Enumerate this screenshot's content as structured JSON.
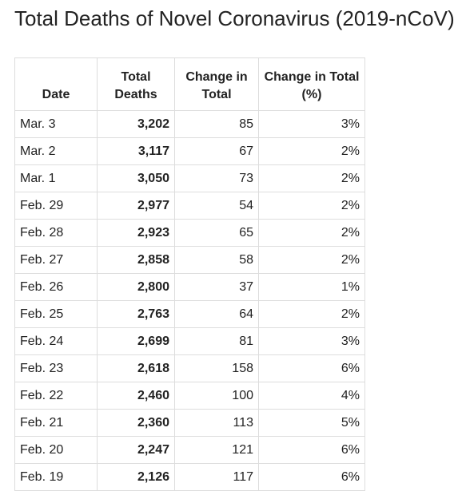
{
  "header": {
    "title": "Total Deaths of Novel Coronavirus (2019-nCoV)"
  },
  "table": {
    "columns": [
      "Date",
      "Total Deaths",
      "Change in Total",
      "Change in Total (%)"
    ],
    "rows": [
      [
        "Mar. 3",
        "3,202",
        "85",
        "3%"
      ],
      [
        "Mar. 2",
        "3,117",
        "67",
        "2%"
      ],
      [
        "Mar. 1",
        "3,050",
        "73",
        "2%"
      ],
      [
        "Feb. 29",
        "2,977",
        "54",
        "2%"
      ],
      [
        "Feb. 28",
        "2,923",
        "65",
        "2%"
      ],
      [
        "Feb. 27",
        "2,858",
        "58",
        "2%"
      ],
      [
        "Feb. 26",
        "2,800",
        "37",
        "1%"
      ],
      [
        "Feb. 25",
        "2,763",
        "64",
        "2%"
      ],
      [
        "Feb. 24",
        "2,699",
        "81",
        "3%"
      ],
      [
        "Feb. 23",
        "2,618",
        "158",
        "6%"
      ],
      [
        "Feb. 22",
        "2,460",
        "100",
        "4%"
      ],
      [
        "Feb. 21",
        "2,360",
        "113",
        "5%"
      ],
      [
        "Feb. 20",
        "2,247",
        "121",
        "6%"
      ],
      [
        "Feb. 19",
        "2,126",
        "117",
        "6%"
      ]
    ]
  }
}
